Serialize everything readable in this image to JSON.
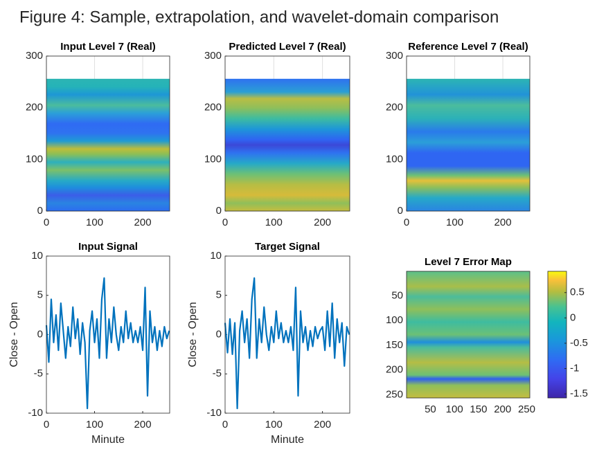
{
  "title": "Figure 4: Sample, extrapolation, and wavelet-domain comparison",
  "chart_data": [
    {
      "type": "heatmap",
      "title": "Input Level 7 (Real)",
      "xlim": [
        0,
        256
      ],
      "ylim": [
        0,
        300
      ],
      "xticks": [
        0,
        100,
        200
      ],
      "yticks": [
        0,
        100,
        200,
        300
      ],
      "grid": true
    },
    {
      "type": "heatmap",
      "title": "Predicted Level 7 (Real)",
      "xlim": [
        0,
        256
      ],
      "ylim": [
        0,
        300
      ],
      "xticks": [
        0,
        100,
        200
      ],
      "yticks": [
        0,
        100,
        200,
        300
      ],
      "grid": true
    },
    {
      "type": "heatmap",
      "title": "Reference Level 7 (Real)",
      "xlim": [
        0,
        256
      ],
      "ylim": [
        0,
        300
      ],
      "xticks": [
        0,
        100,
        200
      ],
      "yticks": [
        0,
        100,
        200,
        300
      ],
      "grid": true
    },
    {
      "type": "line",
      "title": "Input Signal",
      "xlabel": "Minute",
      "ylabel": "Close - Open",
      "color": "#0072bd",
      "xlim": [
        0,
        256
      ],
      "ylim": [
        -10,
        10
      ],
      "xticks": [
        0,
        100,
        200
      ],
      "yticks": [
        -10,
        -5,
        0,
        5,
        10
      ],
      "x": [
        0,
        5,
        10,
        15,
        20,
        25,
        30,
        35,
        40,
        45,
        50,
        55,
        60,
        65,
        70,
        75,
        80,
        85,
        90,
        95,
        100,
        105,
        110,
        115,
        120,
        125,
        130,
        135,
        140,
        145,
        150,
        155,
        160,
        165,
        170,
        175,
        180,
        185,
        190,
        195,
        200,
        205,
        210,
        215,
        220,
        225,
        230,
        235,
        240,
        245,
        250,
        255
      ],
      "values": [
        1.2,
        -3.5,
        4.5,
        -1,
        2.5,
        -2,
        4,
        0.5,
        -3,
        1,
        -1.5,
        3.5,
        -0.5,
        2,
        -2.5,
        1.5,
        -1,
        -9.4,
        0.5,
        3,
        -1,
        2,
        -3,
        4.5,
        7.2,
        -3,
        2,
        -1,
        3.5,
        0,
        -2,
        1,
        -1,
        3,
        -0.5,
        1.5,
        -1,
        0.5,
        -1,
        1,
        -2,
        6,
        -7.8,
        3,
        -1,
        1,
        -2,
        0.5,
        -1.5,
        1,
        -0.5,
        0.5
      ]
    },
    {
      "type": "line",
      "title": "Target Signal",
      "xlabel": "Minute",
      "ylabel": "Close - Open",
      "color": "#0072bd",
      "xlim": [
        0,
        256
      ],
      "ylim": [
        -10,
        10
      ],
      "xticks": [
        0,
        100,
        200
      ],
      "yticks": [
        -10,
        -5,
        0,
        5,
        10
      ],
      "x": [
        0,
        5,
        10,
        15,
        20,
        25,
        30,
        35,
        40,
        45,
        50,
        55,
        60,
        65,
        70,
        75,
        80,
        85,
        90,
        95,
        100,
        105,
        110,
        115,
        120,
        125,
        130,
        135,
        140,
        145,
        150,
        155,
        160,
        165,
        170,
        175,
        180,
        185,
        190,
        195,
        200,
        205,
        210,
        215,
        220,
        225,
        230,
        235,
        240,
        245,
        250,
        255
      ],
      "values": [
        1.5,
        -2.3,
        2,
        -2.5,
        1.5,
        -9.4,
        0.5,
        3,
        -1,
        2,
        -3,
        4.5,
        7.2,
        -3,
        2,
        -1,
        3.5,
        0,
        -2,
        1,
        -1,
        3,
        -0.5,
        1.5,
        -1,
        0.5,
        -1,
        1,
        -2,
        6,
        -7.8,
        3,
        -1,
        1,
        -2,
        0.5,
        -1.5,
        1,
        -0.5,
        0.5,
        1,
        -2,
        3,
        -1.5,
        4,
        -3,
        2,
        -1,
        1.5,
        -4,
        1,
        0
      ]
    },
    {
      "type": "heatmap",
      "title": "Level 7 Error Map",
      "xlim": [
        0.5,
        256.5
      ],
      "ylim": [
        0.5,
        256.5
      ],
      "y_reversed": true,
      "xticks": [
        50,
        100,
        150,
        200,
        250
      ],
      "yticks": [
        50,
        100,
        150,
        200,
        250
      ],
      "grid": false,
      "colorbar": {
        "lim": [
          -1.58,
          0.92
        ],
        "ticks": [
          -1.5,
          -1,
          -0.5,
          0,
          0.5
        ]
      }
    }
  ]
}
